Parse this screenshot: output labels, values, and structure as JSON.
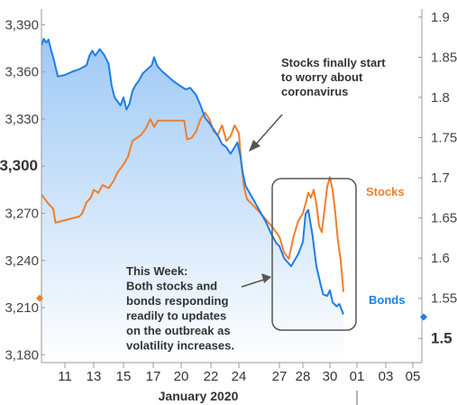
{
  "chart_data": {
    "type": "line",
    "xlabel": "January 2020",
    "x_ticks": [
      "11",
      "13",
      "15",
      "17",
      "20",
      "22",
      "24",
      "27",
      "28",
      "30",
      "01",
      "03",
      "05"
    ],
    "left_axis": {
      "ticks": [
        "3,390",
        "3,360",
        "3,330",
        "3,300",
        "3,270",
        "3,240",
        "3,210",
        "3,180"
      ],
      "values": [
        3390,
        3360,
        3330,
        3300,
        3270,
        3240,
        3210,
        3180
      ],
      "emphasized": "3,300",
      "ylim": [
        3175,
        3400
      ]
    },
    "right_axis": {
      "ticks": [
        "1.9",
        "1.85",
        "1.8",
        "1.75",
        "1.7",
        "1.65",
        "1.6",
        "1.55",
        "1.5"
      ],
      "values": [
        1.9,
        1.85,
        1.8,
        1.75,
        1.7,
        1.65,
        1.6,
        1.55,
        1.5
      ],
      "emphasized": "1.5",
      "ylim": [
        1.47,
        1.91
      ]
    },
    "series": [
      {
        "name": "Bonds",
        "axis": "right",
        "color": "#1f7de6",
        "points": [
          [
            9.0,
            1.865
          ],
          [
            9.2,
            1.873
          ],
          [
            9.4,
            1.868
          ],
          [
            9.6,
            1.872
          ],
          [
            9.8,
            1.86
          ],
          [
            10.0,
            1.85
          ],
          [
            10.2,
            1.838
          ],
          [
            10.4,
            1.826
          ],
          [
            11.0,
            1.828
          ],
          [
            11.5,
            1.832
          ],
          [
            12.0,
            1.835
          ],
          [
            12.5,
            1.84
          ],
          [
            12.7,
            1.852
          ],
          [
            12.9,
            1.858
          ],
          [
            13.1,
            1.852
          ],
          [
            13.4,
            1.86
          ],
          [
            13.7,
            1.853
          ],
          [
            14.0,
            1.842
          ],
          [
            14.2,
            1.815
          ],
          [
            14.4,
            1.8
          ],
          [
            14.6,
            1.795
          ],
          [
            14.8,
            1.79
          ],
          [
            15.0,
            1.8
          ],
          [
            15.2,
            1.785
          ],
          [
            15.4,
            1.792
          ],
          [
            15.6,
            1.808
          ],
          [
            15.8,
            1.815
          ],
          [
            16.0,
            1.82
          ],
          [
            16.3,
            1.83
          ],
          [
            16.6,
            1.835
          ],
          [
            16.9,
            1.84
          ],
          [
            17.1,
            1.85
          ],
          [
            17.3,
            1.843
          ],
          [
            17.5,
            1.838
          ],
          [
            18.0,
            1.832
          ],
          [
            18.6,
            1.826
          ],
          [
            19.2,
            1.82
          ],
          [
            19.8,
            1.815
          ],
          [
            20.3,
            1.81
          ],
          [
            20.6,
            1.812
          ],
          [
            21.0,
            1.803
          ],
          [
            21.3,
            1.79
          ],
          [
            21.6,
            1.775
          ],
          [
            21.9,
            1.768
          ],
          [
            22.2,
            1.76
          ],
          [
            22.5,
            1.752
          ],
          [
            22.8,
            1.742
          ],
          [
            23.1,
            1.738
          ],
          [
            23.4,
            1.73
          ],
          [
            23.7,
            1.738
          ],
          [
            23.9,
            1.744
          ],
          [
            24.1,
            1.728
          ],
          [
            24.3,
            1.705
          ],
          [
            24.5,
            1.69
          ],
          [
            25.0,
            1.675
          ],
          [
            25.5,
            1.66
          ],
          [
            26.0,
            1.645
          ],
          [
            26.4,
            1.63
          ],
          [
            26.8,
            1.618
          ],
          [
            27.0,
            1.615
          ],
          [
            27.2,
            1.6
          ],
          [
            27.5,
            1.59
          ],
          [
            27.8,
            1.605
          ],
          [
            28.0,
            1.62
          ],
          [
            28.2,
            1.655
          ],
          [
            28.4,
            1.66
          ],
          [
            28.7,
            1.63
          ],
          [
            29.0,
            1.59
          ],
          [
            29.3,
            1.568
          ],
          [
            29.5,
            1.555
          ],
          [
            29.8,
            1.553
          ],
          [
            30.0,
            1.56
          ],
          [
            30.2,
            1.545
          ],
          [
            30.5,
            1.54
          ],
          [
            30.7,
            1.543
          ],
          [
            31.0,
            1.53
          ]
        ]
      },
      {
        "name": "Stocks",
        "axis": "left",
        "color": "#ef7e2e",
        "points": [
          [
            9.0,
            3282
          ],
          [
            9.3,
            3279
          ],
          [
            9.6,
            3276
          ],
          [
            10.0,
            3273
          ],
          [
            10.2,
            3264
          ],
          [
            12.0,
            3268
          ],
          [
            12.2,
            3270
          ],
          [
            12.5,
            3277
          ],
          [
            12.8,
            3280
          ],
          [
            13.0,
            3285
          ],
          [
            13.3,
            3283
          ],
          [
            13.6,
            3288
          ],
          [
            14.0,
            3286
          ],
          [
            14.3,
            3290
          ],
          [
            14.6,
            3296
          ],
          [
            15.0,
            3301
          ],
          [
            15.3,
            3306
          ],
          [
            15.6,
            3316
          ],
          [
            15.9,
            3318
          ],
          [
            16.2,
            3320
          ],
          [
            16.5,
            3324
          ],
          [
            16.8,
            3330
          ],
          [
            17.1,
            3325
          ],
          [
            17.5,
            3329
          ],
          [
            18.5,
            3329
          ],
          [
            19.5,
            3329
          ],
          [
            20.2,
            3329
          ],
          [
            20.4,
            3317
          ],
          [
            20.7,
            3318
          ],
          [
            21.0,
            3322
          ],
          [
            21.3,
            3330
          ],
          [
            21.6,
            3334
          ],
          [
            21.9,
            3330
          ],
          [
            22.2,
            3322
          ],
          [
            22.5,
            3320
          ],
          [
            22.8,
            3326
          ],
          [
            23.1,
            3316
          ],
          [
            23.4,
            3319
          ],
          [
            23.7,
            3326
          ],
          [
            24.0,
            3321
          ],
          [
            24.2,
            3300
          ],
          [
            24.4,
            3286
          ],
          [
            24.6,
            3279
          ],
          [
            25.5,
            3271
          ],
          [
            26.5,
            3261
          ],
          [
            27.0,
            3255
          ],
          [
            27.2,
            3245
          ],
          [
            27.4,
            3241
          ],
          [
            27.6,
            3255
          ],
          [
            27.8,
            3265
          ],
          [
            28.0,
            3270
          ],
          [
            28.2,
            3276
          ],
          [
            28.4,
            3283
          ],
          [
            28.6,
            3280
          ],
          [
            28.8,
            3285
          ],
          [
            29.0,
            3276
          ],
          [
            29.2,
            3262
          ],
          [
            29.4,
            3258
          ],
          [
            29.6,
            3272
          ],
          [
            29.8,
            3287
          ],
          [
            30.0,
            3293
          ],
          [
            30.2,
            3285
          ],
          [
            30.4,
            3270
          ],
          [
            30.6,
            3252
          ],
          [
            30.8,
            3240
          ],
          [
            31.0,
            3220
          ]
        ]
      }
    ],
    "annotations": [
      {
        "lines": [
          "Stocks finally start",
          "to worry about",
          "coronavirus"
        ]
      },
      {
        "lines": [
          "This Week:",
          "Both stocks and",
          "bonds responding",
          "readily to updates",
          "on the outbreak as",
          "volatility increases."
        ]
      }
    ],
    "fill": {
      "top": "#9ec9f6",
      "bottom": "#ffffff"
    },
    "grid": false,
    "legend": "inline-right"
  }
}
